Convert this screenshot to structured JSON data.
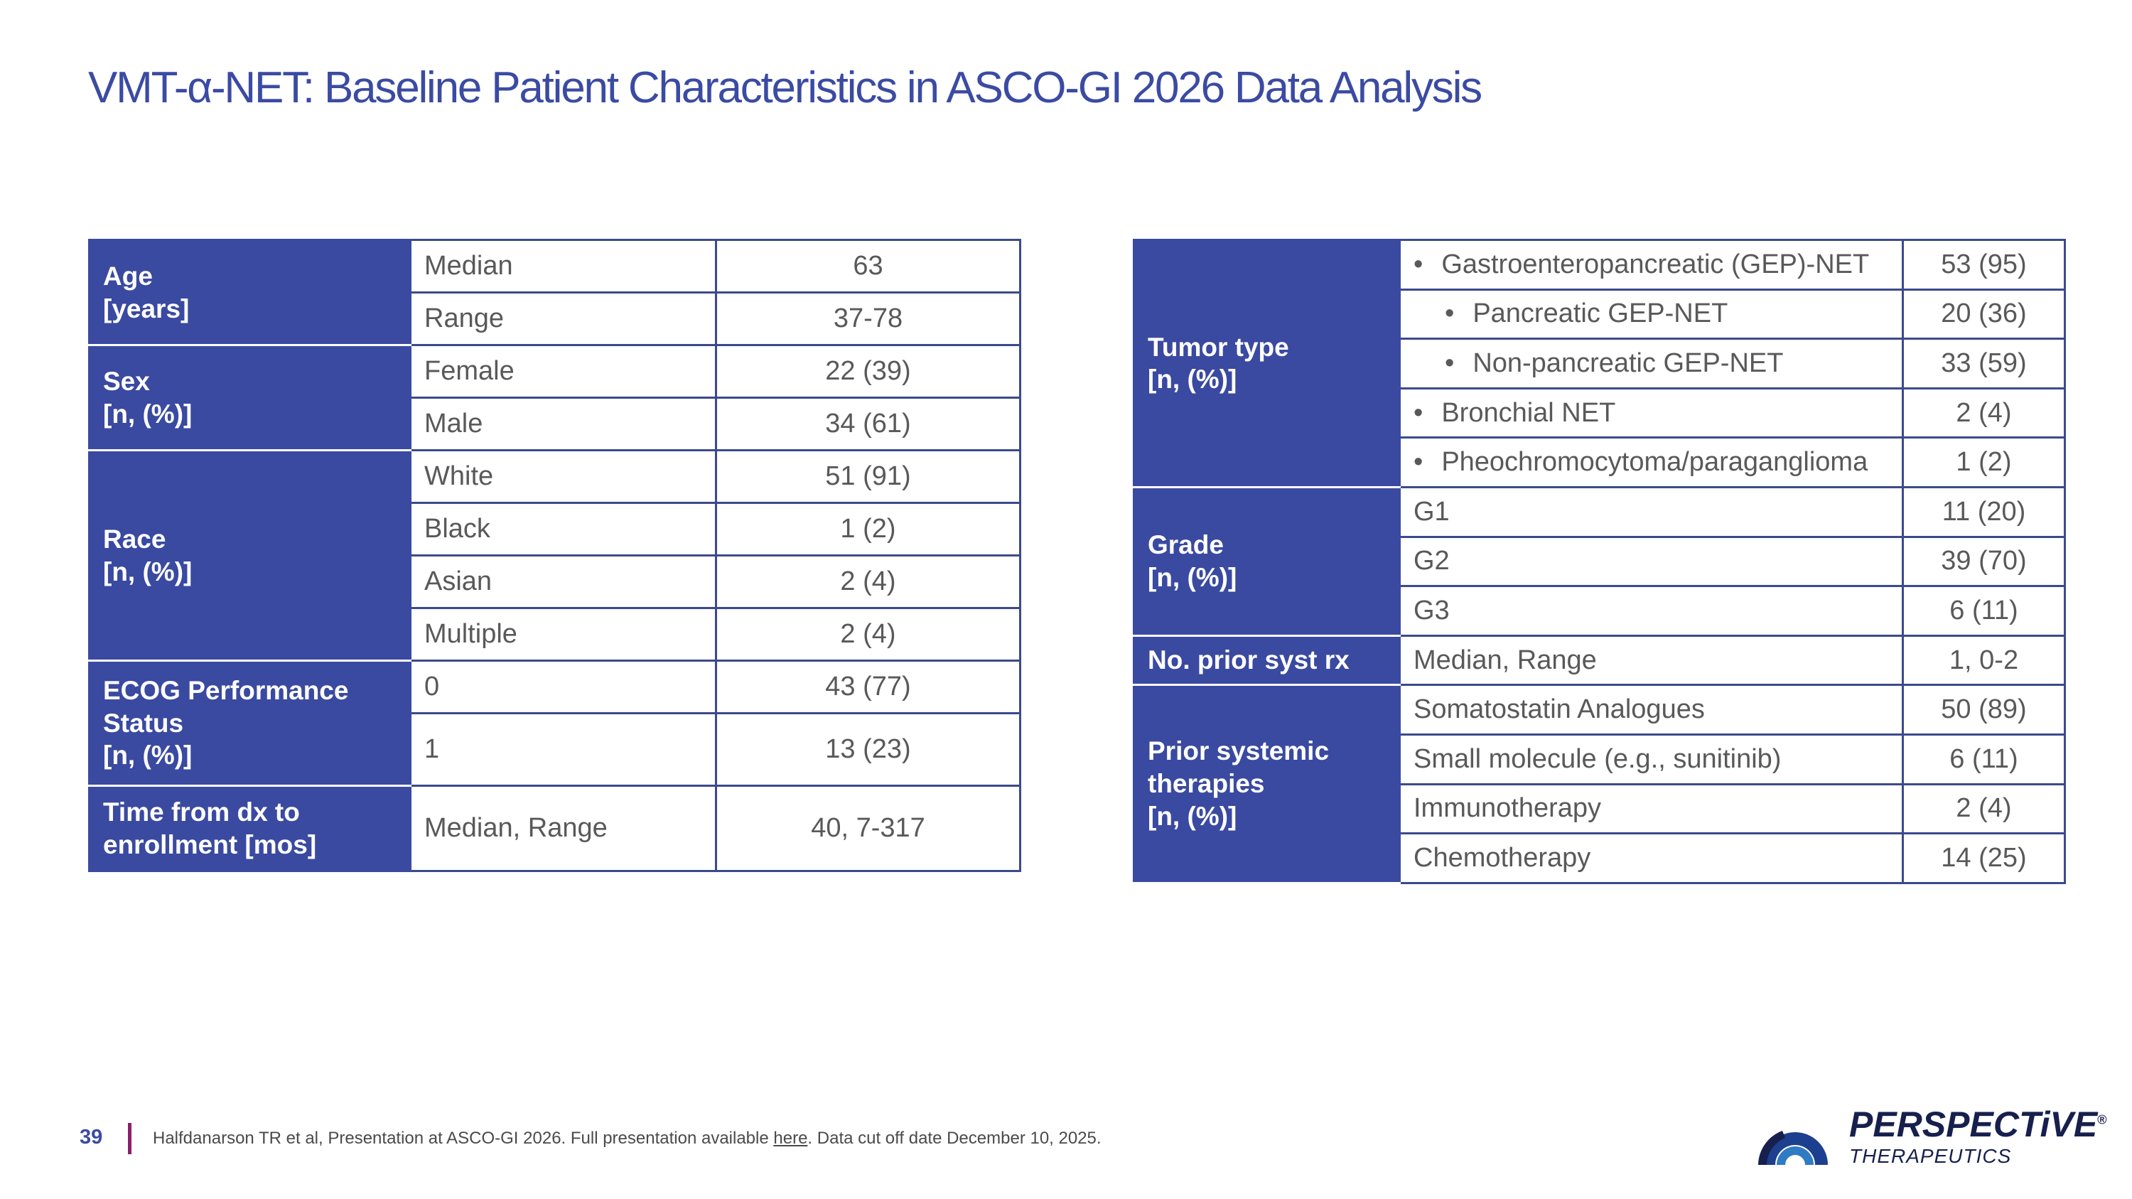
{
  "slide": {
    "title": "VMT-α-NET: Baseline Patient Characteristics in ASCO-GI 2026 Data Analysis",
    "page_number": "39"
  },
  "left_table": {
    "age": {
      "category": "Age\n[years]",
      "rows": [
        {
          "label": "Median",
          "value": "63"
        },
        {
          "label": "Range",
          "value": "37-78"
        }
      ]
    },
    "sex": {
      "category": "Sex\n[n, (%)]",
      "rows": [
        {
          "label": "Female",
          "value": "22 (39)"
        },
        {
          "label": "Male",
          "value": "34 (61)"
        }
      ]
    },
    "race": {
      "category": "Race\n[n, (%)]",
      "rows": [
        {
          "label": "White",
          "value": "51 (91)"
        },
        {
          "label": "Black",
          "value": "1 (2)"
        },
        {
          "label": "Asian",
          "value": "2 (4)"
        },
        {
          "label": "Multiple",
          "value": "2 (4)"
        }
      ]
    },
    "ecog": {
      "category": "ECOG Performance Status\n[n, (%)]",
      "rows": [
        {
          "label": "0",
          "value": "43 (77)"
        },
        {
          "label": "1",
          "value": "13 (23)"
        }
      ]
    },
    "time": {
      "category": "Time from dx to enrollment [mos]",
      "rows": [
        {
          "label": "Median, Range",
          "value": "40, 7-317"
        }
      ]
    }
  },
  "right_table": {
    "tumor_type": {
      "category": "Tumor type\n[n, (%)]",
      "rows": [
        {
          "label": "Gastroenteropancreatic (GEP)-NET",
          "value": "53 (95)"
        },
        {
          "label": "Pancreatic GEP-NET",
          "value": "20 (36)"
        },
        {
          "label": "Non-pancreatic GEP-NET",
          "value": "33 (59)"
        },
        {
          "label": "Bronchial NET",
          "value": "2 (4)"
        },
        {
          "label": "Pheochromocytoma/paraganglioma",
          "value": "1 (2)"
        }
      ]
    },
    "grade": {
      "category": "Grade\n[n, (%)]",
      "rows": [
        {
          "label": "G1",
          "value": "11 (20)"
        },
        {
          "label": "G2",
          "value": "39 (70)"
        },
        {
          "label": "G3",
          "value": "6 (11)"
        }
      ]
    },
    "prior_rx": {
      "category": "No. prior syst rx",
      "rows": [
        {
          "label": "Median, Range",
          "value": "1, 0-2"
        }
      ]
    },
    "prior_therapies": {
      "category": "Prior systemic therapies\n[n, (%)]",
      "rows": [
        {
          "label": "Somatostatin Analogues",
          "value": "50 (89)"
        },
        {
          "label": "Small molecule (e.g., sunitinib)",
          "value": "6 (11)"
        },
        {
          "label": "Immunotherapy",
          "value": "2 (4)"
        },
        {
          "label": "Chemotherapy",
          "value": "14 (25)"
        }
      ]
    }
  },
  "footer": {
    "citation_prefix": "Halfdanarson TR et al, Presentation at ASCO-GI 2026. Full presentation available ",
    "link_text": "here",
    "citation_suffix": ". Data cut off date December 10, 2025."
  },
  "logo": {
    "wordmark": "PERSPECTiVE",
    "registered": "®",
    "subtitle": "THERAPEUTICS",
    "colors": {
      "navy": "#17204d",
      "blue": "#2f7bc4",
      "dark_blue": "#1d3f8f"
    }
  },
  "colors": {
    "title": "#3b4ba3",
    "header_fill": "#3a4aa1",
    "border": "#3b4a8c",
    "separator": "#8d1f6a"
  }
}
